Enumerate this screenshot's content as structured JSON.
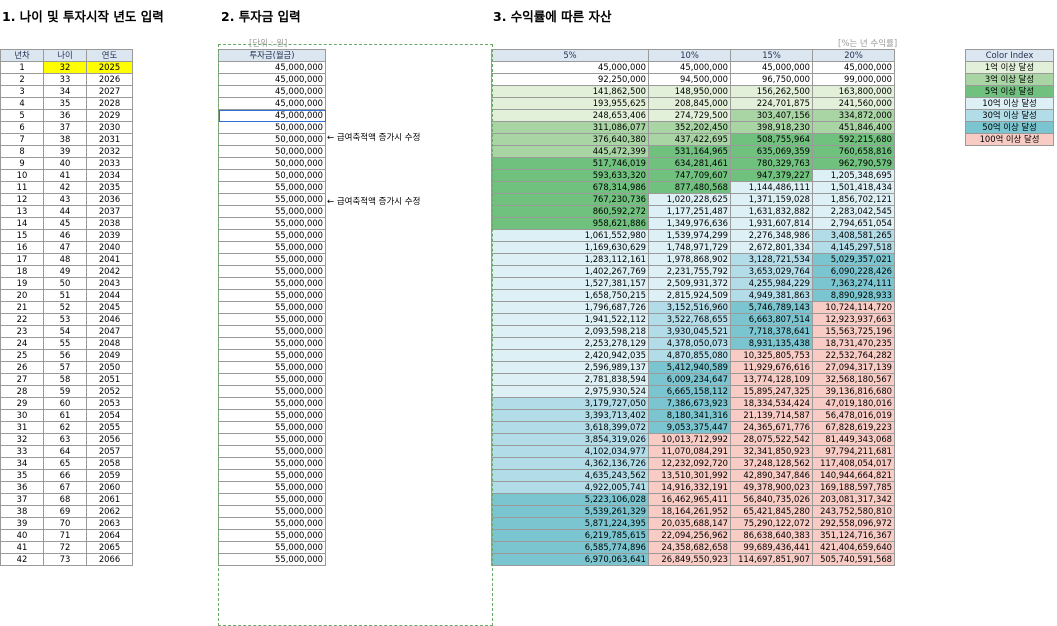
{
  "headings": {
    "section1": "1. 나이 및 투자시작 년도 입력",
    "section2": "2. 투자금 입력",
    "section3": "3. 수익률에 따른 자산"
  },
  "notes": {
    "unit": "[단위 : 원]",
    "rate_note": "[%는 년 수익률]"
  },
  "table1": {
    "headers": [
      "년차",
      "나이",
      "연도"
    ],
    "rows": [
      [
        "1",
        "32",
        "2025"
      ],
      [
        "2",
        "33",
        "2026"
      ],
      [
        "3",
        "34",
        "2027"
      ],
      [
        "4",
        "35",
        "2028"
      ],
      [
        "5",
        "36",
        "2029"
      ],
      [
        "6",
        "37",
        "2030"
      ],
      [
        "7",
        "38",
        "2031"
      ],
      [
        "8",
        "39",
        "2032"
      ],
      [
        "9",
        "40",
        "2033"
      ],
      [
        "10",
        "41",
        "2034"
      ],
      [
        "11",
        "42",
        "2035"
      ],
      [
        "12",
        "43",
        "2036"
      ],
      [
        "13",
        "44",
        "2037"
      ],
      [
        "14",
        "45",
        "2038"
      ],
      [
        "15",
        "46",
        "2039"
      ],
      [
        "16",
        "47",
        "2040"
      ],
      [
        "17",
        "48",
        "2041"
      ],
      [
        "18",
        "49",
        "2042"
      ],
      [
        "19",
        "50",
        "2043"
      ],
      [
        "20",
        "51",
        "2044"
      ],
      [
        "21",
        "52",
        "2045"
      ],
      [
        "22",
        "53",
        "2046"
      ],
      [
        "23",
        "54",
        "2047"
      ],
      [
        "24",
        "55",
        "2048"
      ],
      [
        "25",
        "56",
        "2049"
      ],
      [
        "26",
        "57",
        "2050"
      ],
      [
        "27",
        "58",
        "2051"
      ],
      [
        "28",
        "59",
        "2052"
      ],
      [
        "29",
        "60",
        "2053"
      ],
      [
        "30",
        "61",
        "2054"
      ],
      [
        "31",
        "62",
        "2055"
      ],
      [
        "32",
        "63",
        "2056"
      ],
      [
        "33",
        "64",
        "2057"
      ],
      [
        "34",
        "65",
        "2058"
      ],
      [
        "35",
        "66",
        "2059"
      ],
      [
        "36",
        "67",
        "2060"
      ],
      [
        "37",
        "68",
        "2061"
      ],
      [
        "38",
        "69",
        "2062"
      ],
      [
        "39",
        "70",
        "2063"
      ],
      [
        "40",
        "71",
        "2064"
      ],
      [
        "41",
        "72",
        "2065"
      ],
      [
        "42",
        "73",
        "2066"
      ]
    ],
    "highlight_color": "#ffff00"
  },
  "table2": {
    "header": "투자금(월금)",
    "values": [
      "45,000,000",
      "45,000,000",
      "45,000,000",
      "45,000,000",
      "45,000,000",
      "50,000,000",
      "50,000,000",
      "50,000,000",
      "50,000,000",
      "50,000,000",
      "55,000,000",
      "55,000,000",
      "55,000,000",
      "55,000,000",
      "55,000,000",
      "55,000,000",
      "55,000,000",
      "55,000,000",
      "55,000,000",
      "55,000,000",
      "55,000,000",
      "55,000,000",
      "55,000,000",
      "55,000,000",
      "55,000,000",
      "55,000,000",
      "55,000,000",
      "55,000,000",
      "55,000,000",
      "55,000,000",
      "55,000,000",
      "55,000,000",
      "55,000,000",
      "55,000,000",
      "55,000,000",
      "55,000,000",
      "55,000,000",
      "55,000,000",
      "55,000,000",
      "55,000,000",
      "55,000,000",
      "55,000,000"
    ],
    "annotations": [
      "← 급여축적액 증가시 수정",
      "← 급여축적액 증가시 수정"
    ],
    "selected_row": 5
  },
  "table3": {
    "headers": [
      "5%",
      "10%",
      "15%",
      "20%"
    ],
    "rows": [
      [
        "45,000,000",
        "45,000,000",
        "45,000,000",
        "45,000,000"
      ],
      [
        "92,250,000",
        "94,500,000",
        "96,750,000",
        "99,000,000"
      ],
      [
        "141,862,500",
        "148,950,000",
        "156,262,500",
        "163,800,000"
      ],
      [
        "193,955,625",
        "208,845,000",
        "224,701,875",
        "241,560,000"
      ],
      [
        "248,653,406",
        "274,729,500",
        "303,407,156",
        "334,872,000"
      ],
      [
        "311,086,077",
        "352,202,450",
        "398,918,230",
        "451,846,400"
      ],
      [
        "376,640,380",
        "437,422,695",
        "508,755,964",
        "592,215,680"
      ],
      [
        "445,472,399",
        "531,164,965",
        "635,069,359",
        "760,658,816"
      ],
      [
        "517,746,019",
        "634,281,461",
        "780,329,763",
        "962,790,579"
      ],
      [
        "593,633,320",
        "747,709,607",
        "947,379,227",
        "1,205,348,695"
      ],
      [
        "678,314,986",
        "877,480,568",
        "1,144,486,111",
        "1,501,418,434"
      ],
      [
        "767,230,736",
        "1,020,228,625",
        "1,371,159,028",
        "1,856,702,121"
      ],
      [
        "860,592,272",
        "1,177,251,487",
        "1,631,832,882",
        "2,283,042,545"
      ],
      [
        "958,621,886",
        "1,349,976,636",
        "1,931,607,814",
        "2,794,651,054"
      ],
      [
        "1,061,552,980",
        "1,539,974,299",
        "2,276,348,986",
        "3,408,581,265"
      ],
      [
        "1,169,630,629",
        "1,748,971,729",
        "2,672,801,334",
        "4,145,297,518"
      ],
      [
        "1,283,112,161",
        "1,978,868,902",
        "3,128,721,534",
        "5,029,357,021"
      ],
      [
        "1,402,267,769",
        "2,231,755,792",
        "3,653,029,764",
        "6,090,228,426"
      ],
      [
        "1,527,381,157",
        "2,509,931,372",
        "4,255,984,229",
        "7,363,274,111"
      ],
      [
        "1,658,750,215",
        "2,815,924,509",
        "4,949,381,863",
        "8,890,928,933"
      ],
      [
        "1,796,687,726",
        "3,152,516,960",
        "5,746,789,143",
        "10,724,114,720"
      ],
      [
        "1,941,522,112",
        "3,522,768,655",
        "6,663,807,514",
        "12,923,937,663"
      ],
      [
        "2,093,598,218",
        "3,930,045,521",
        "7,718,378,641",
        "15,563,725,196"
      ],
      [
        "2,253,278,129",
        "4,378,050,073",
        "8,931,135,438",
        "18,731,470,235"
      ],
      [
        "2,420,942,035",
        "4,870,855,080",
        "10,325,805,753",
        "22,532,764,282"
      ],
      [
        "2,596,989,137",
        "5,412,940,589",
        "11,929,676,616",
        "27,094,317,139"
      ],
      [
        "2,781,838,594",
        "6,009,234,647",
        "13,774,128,109",
        "32,568,180,567"
      ],
      [
        "2,975,930,524",
        "6,665,158,112",
        "15,895,247,325",
        "39,136,816,680"
      ],
      [
        "3,179,727,050",
        "7,386,673,923",
        "18,334,534,424",
        "47,019,180,016"
      ],
      [
        "3,393,713,402",
        "8,180,341,316",
        "21,139,714,587",
        "56,478,016,019"
      ],
      [
        "3,618,399,072",
        "9,053,375,447",
        "24,365,671,776",
        "67,828,619,223"
      ],
      [
        "3,854,319,026",
        "10,013,712,992",
        "28,075,522,542",
        "81,449,343,068"
      ],
      [
        "4,102,034,977",
        "11,070,084,291",
        "32,341,850,923",
        "97,794,211,681"
      ],
      [
        "4,362,136,726",
        "12,232,092,720",
        "37,248,128,562",
        "117,408,054,017"
      ],
      [
        "4,635,243,562",
        "13,510,301,992",
        "42,890,347,846",
        "140,944,664,821"
      ],
      [
        "4,922,005,741",
        "14,916,332,191",
        "49,378,900,023",
        "169,188,597,785"
      ],
      [
        "5,223,106,028",
        "16,462,965,411",
        "56,840,735,026",
        "203,081,317,342"
      ],
      [
        "5,539,261,329",
        "18,164,261,952",
        "65,421,845,280",
        "243,752,580,810"
      ],
      [
        "5,871,224,395",
        "20,035,688,147",
        "75,290,122,072",
        "292,558,096,972"
      ],
      [
        "6,219,785,615",
        "22,094,256,962",
        "86,638,640,383",
        "351,124,716,367"
      ],
      [
        "6,585,774,896",
        "24,358,682,658",
        "99,689,436,441",
        "421,404,659,640"
      ],
      [
        "6,970,063,641",
        "26,849,550,923",
        "114,697,851,907",
        "505,740,591,568"
      ]
    ]
  },
  "legend": {
    "title": "Color Index",
    "items": [
      {
        "label": "1억 이상 달성",
        "color": "#e2f0d9"
      },
      {
        "label": "3억 이상 달성",
        "color": "#a9d5a5"
      },
      {
        "label": "5억 이상 달성",
        "color": "#70c07e"
      },
      {
        "label": "10억 이상 달성",
        "color": "#ddf0f5"
      },
      {
        "label": "30억 이상 달성",
        "color": "#b2dde8"
      },
      {
        "label": "50억 이상 달성",
        "color": "#7ac5cf"
      },
      {
        "label": "100억 이상 달성",
        "color": "#f8cbc4"
      }
    ]
  }
}
